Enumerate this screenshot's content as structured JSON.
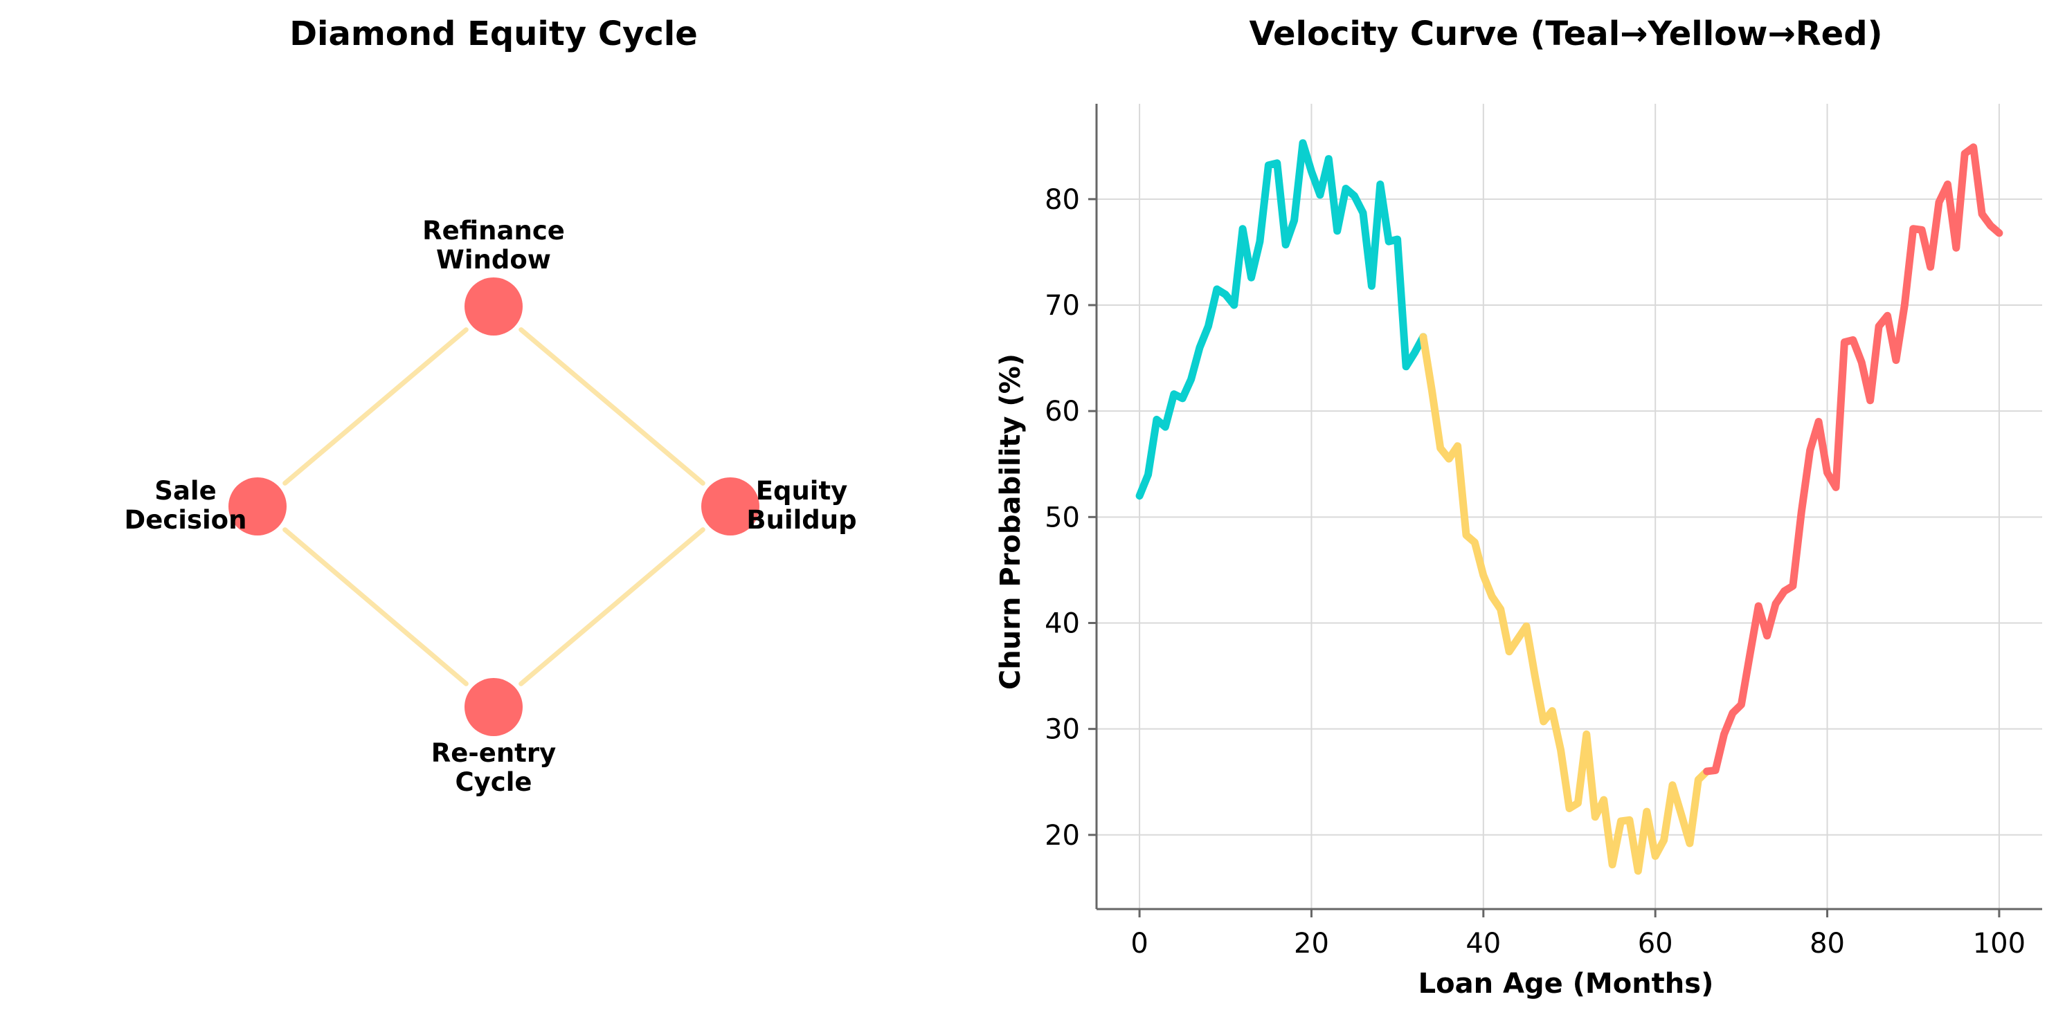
{
  "colors": {
    "edge": "#FCE5A8",
    "node": "#FF6B6B",
    "teal": "#0ACFCF",
    "yellow": "#FDD56A",
    "red": "#FF6B6B",
    "grid": "#d9d9d9",
    "axis": "#666666"
  },
  "chart_data": [
    {
      "type": "diagram",
      "title": "Diamond Equity Cycle",
      "nodes": [
        {
          "id": "refinance",
          "label_lines": [
            "Refinance",
            "Window"
          ],
          "position": "top"
        },
        {
          "id": "equity",
          "label_lines": [
            "Equity",
            "Buildup"
          ],
          "position": "right"
        },
        {
          "id": "reentry",
          "label_lines": [
            "Re-entry",
            "Cycle"
          ],
          "position": "bottom"
        },
        {
          "id": "sale",
          "label_lines": [
            "Sale",
            "Decision"
          ],
          "position": "left"
        }
      ],
      "edges": [
        [
          "refinance",
          "equity"
        ],
        [
          "equity",
          "reentry"
        ],
        [
          "reentry",
          "sale"
        ],
        [
          "sale",
          "refinance"
        ]
      ]
    },
    {
      "type": "line",
      "title": "Velocity Curve (Teal→Yellow→Red)",
      "xlabel": "Loan Age (Months)",
      "ylabel": "Churn Probability (%)",
      "xlim": [
        -5,
        105
      ],
      "ylim": [
        13,
        89
      ],
      "xticks": [
        0,
        20,
        40,
        60,
        80,
        100
      ],
      "yticks": [
        20,
        30,
        40,
        50,
        60,
        70,
        80
      ],
      "grid": true,
      "segments": [
        {
          "color_key": "teal",
          "x_start": 0,
          "x_end": 33
        },
        {
          "color_key": "yellow",
          "x_start": 33,
          "x_end": 66
        },
        {
          "color_key": "red",
          "x_start": 66,
          "x_end": 100
        }
      ],
      "x": [
        0,
        1,
        2,
        3,
        4,
        5,
        6,
        7,
        8,
        9,
        10,
        11,
        12,
        13,
        14,
        15,
        16,
        17,
        18,
        19,
        20,
        21,
        22,
        23,
        24,
        25,
        26,
        27,
        28,
        29,
        30,
        31,
        32,
        33,
        34,
        35,
        36,
        37,
        38,
        39,
        40,
        41,
        42,
        43,
        44,
        45,
        46,
        47,
        48,
        49,
        50,
        51,
        52,
        53,
        54,
        55,
        56,
        57,
        58,
        59,
        60,
        61,
        62,
        63,
        64,
        65,
        66,
        67,
        68,
        69,
        70,
        71,
        72,
        73,
        74,
        75,
        76,
        77,
        78,
        79,
        80,
        81,
        82,
        83,
        84,
        85,
        86,
        87,
        88,
        89,
        90,
        91,
        92,
        93,
        94,
        95,
        96,
        97,
        98,
        99,
        100
      ],
      "y": [
        52,
        54,
        59.2,
        58.5,
        61.6,
        61.2,
        63,
        66,
        68,
        71.5,
        71,
        70,
        77.2,
        72.6,
        76,
        83.2,
        83.4,
        75.7,
        78,
        85.3,
        82.6,
        80.4,
        83.8,
        77,
        81,
        80.3,
        78.7,
        71.8,
        81.4,
        76,
        76.2,
        64.2,
        65.5,
        67,
        62,
        56.5,
        55.5,
        56.7,
        48.3,
        47.6,
        44.5,
        42.5,
        41.3,
        37.3,
        38.5,
        39.7,
        35,
        30.7,
        31.7,
        28,
        22.5,
        23,
        29.5,
        21.7,
        23.3,
        17.2,
        21.3,
        21.4,
        16.6,
        22.2,
        18,
        19.5,
        24.7,
        22,
        19.2,
        25.2,
        26,
        26.1,
        29.5,
        31.5,
        32.3,
        37,
        41.6,
        38.8,
        41.8,
        43,
        43.5,
        50.5,
        56.3,
        59,
        54.2,
        52.8,
        66.5,
        66.7,
        64.6,
        61,
        68,
        69,
        64.8,
        70,
        77.2,
        77.1,
        73.6,
        79.7,
        81.4,
        75.4,
        84.3,
        84.9,
        78.6,
        77.5,
        76.8
      ]
    }
  ]
}
